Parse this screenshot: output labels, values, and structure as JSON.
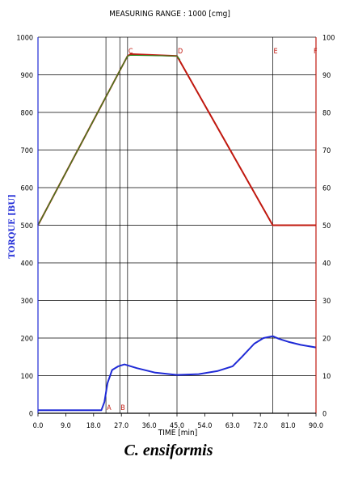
{
  "caption": "C. ensiformis",
  "chart_data": {
    "type": "line",
    "title": "MEASURING RANGE : 1000 [cmg]",
    "xlabel": "TIME [min]",
    "ylabel": "TORQUE [BU]",
    "y2label": "",
    "xlim": [
      0,
      90
    ],
    "ylim": [
      0,
      1000
    ],
    "y2lim": [
      0,
      100
    ],
    "x_ticks": [
      "0.0",
      "9.0",
      "18.0",
      "27.0",
      "36.0",
      "45.0",
      "54.0",
      "63.0",
      "72.0",
      "81.0",
      "90.0"
    ],
    "y_ticks": [
      "0",
      "100",
      "200",
      "300",
      "400",
      "500",
      "600",
      "700",
      "800",
      "900",
      "1000"
    ],
    "y2_ticks": [
      "0",
      "10",
      "20",
      "30",
      "40",
      "50",
      "60",
      "70",
      "80",
      "90",
      "100"
    ],
    "markers": [
      {
        "label": "A",
        "x": 22,
        "position": "bottom"
      },
      {
        "label": "B",
        "x": 26.5,
        "position": "bottom"
      },
      {
        "label": "C",
        "x": 29,
        "position": "top"
      },
      {
        "label": "D",
        "x": 45,
        "position": "top"
      },
      {
        "label": "E",
        "x": 76,
        "position": "top"
      },
      {
        "label": "F",
        "x": 90,
        "position": "top"
      }
    ],
    "grid": true,
    "colors": {
      "temperature": "#c0180f",
      "temperature_overlay": "#2e8b22",
      "torque": "#1f2ad6",
      "axis_left": "#1f2ad6",
      "axis_right": "#c0180f"
    },
    "series": [
      {
        "axis": "right",
        "color": "#c0180f",
        "x": [
          0,
          29,
          30,
          45,
          76,
          77,
          90
        ],
        "y": [
          50,
          95,
          95.5,
          95,
          50,
          50,
          50
        ]
      },
      {
        "axis": "right",
        "color": "#2e8b22",
        "x": [
          0,
          29,
          30,
          45,
          46
        ],
        "y": [
          50,
          95,
          95.2,
          95,
          94
        ]
      },
      {
        "axis": "left",
        "color": "#1f2ad6",
        "x": [
          0,
          20.5,
          21.5,
          22.5,
          24,
          26,
          28,
          32,
          38,
          45,
          52,
          58,
          63,
          66,
          70,
          73,
          76,
          78,
          81,
          85,
          90
        ],
        "y": [
          8,
          8,
          30,
          80,
          115,
          125,
          130,
          120,
          108,
          102,
          104,
          112,
          125,
          150,
          185,
          200,
          205,
          198,
          190,
          182,
          175
        ]
      }
    ]
  }
}
